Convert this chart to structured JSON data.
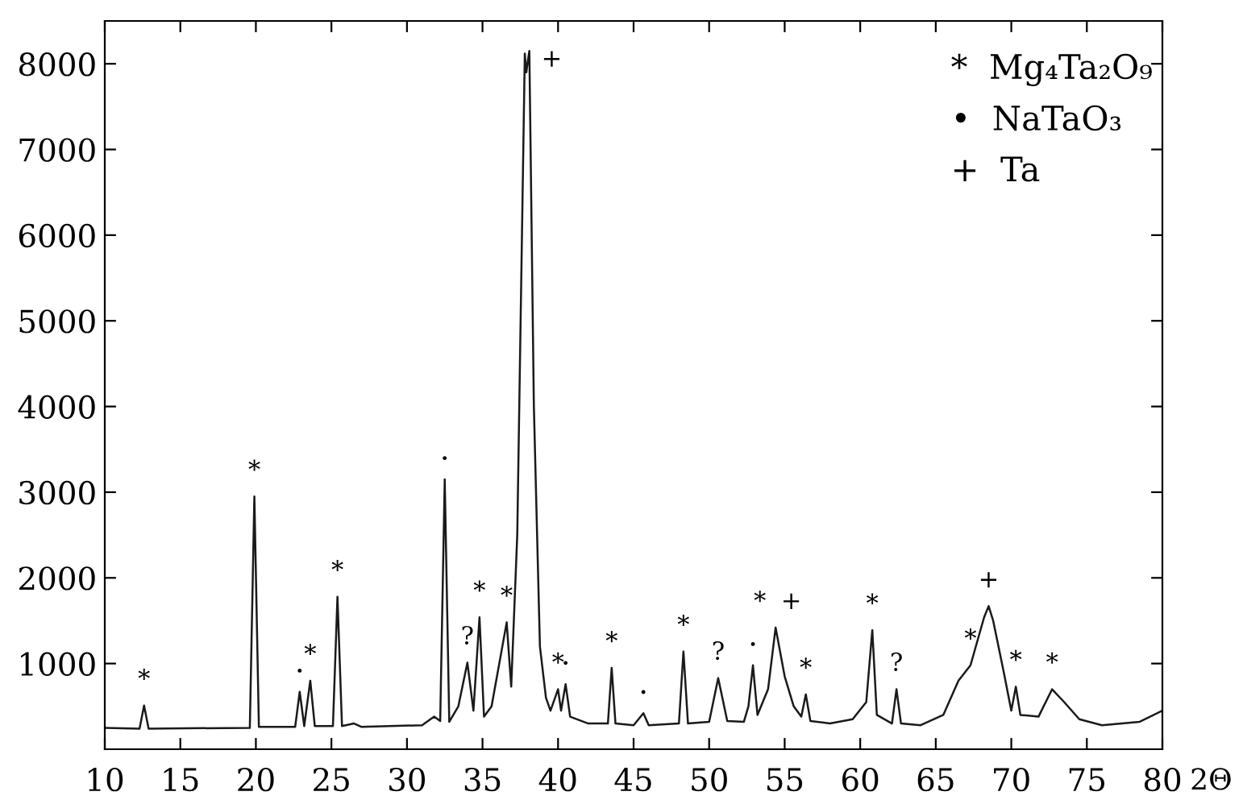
{
  "chart_data": {
    "type": "line",
    "xlabel": "2Θ",
    "x": [
      10,
      12.3,
      12.6,
      12.9,
      19.6,
      19.9,
      20.2,
      22.6,
      22.9,
      23.2,
      23.6,
      23.9,
      25.1,
      25.4,
      25.7,
      26.5,
      27,
      31,
      31.8,
      32.2,
      32.5,
      32.8,
      33.4,
      34.0,
      34.4,
      34.8,
      35.1,
      35.6,
      36.6,
      36.9,
      37.3,
      37.8,
      37.9,
      38.0,
      38.1,
      38.4,
      38.8,
      39.2,
      39.5,
      40.0,
      40.2,
      40.5,
      40.8,
      42,
      43.3,
      43.55,
      43.8,
      45,
      45.65,
      46,
      48.0,
      48.3,
      48.6,
      50.0,
      50.6,
      51.2,
      52.3,
      52.6,
      52.9,
      53.2,
      53.9,
      54.4,
      55.0,
      55.6,
      56.1,
      56.4,
      56.7,
      58,
      59.5,
      60.4,
      60.8,
      61.1,
      62.1,
      62.4,
      62.7,
      64,
      65.5,
      66.5,
      67.3,
      68.2,
      68.5,
      68.8,
      69.5,
      70.0,
      70.3,
      70.6,
      71.8,
      72.7,
      73.5,
      74.5,
      76,
      78.5,
      80
    ],
    "series": [
      {
        "color": "#1a1a1a",
        "values": [
          250,
          240,
          510,
          240,
          250,
          2950,
          260,
          260,
          670,
          270,
          800,
          270,
          270,
          1780,
          270,
          300,
          260,
          280,
          380,
          330,
          3150,
          320,
          500,
          1010,
          450,
          1540,
          380,
          500,
          1480,
          730,
          2500,
          8120,
          7900,
          8030,
          8150,
          4000,
          1200,
          600,
          450,
          700,
          450,
          760,
          380,
          300,
          300,
          950,
          300,
          280,
          420,
          280,
          300,
          1140,
          300,
          320,
          830,
          330,
          320,
          500,
          980,
          400,
          700,
          1420,
          850,
          500,
          380,
          640,
          330,
          300,
          350,
          550,
          1390,
          400,
          300,
          700,
          300,
          280,
          400,
          800,
          980,
          1540,
          1670,
          1500,
          900,
          450,
          730,
          400,
          380,
          700,
          550,
          350,
          280,
          320,
          450
        ]
      }
    ],
    "xlim": [
      10,
      80
    ],
    "xticks": [
      10,
      15,
      20,
      25,
      30,
      35,
      40,
      45,
      50,
      55,
      60,
      65,
      70,
      75,
      80
    ],
    "ylim": [
      0,
      8500
    ],
    "yticks": [
      1000,
      2000,
      3000,
      4000,
      5000,
      6000,
      7000,
      8000
    ],
    "grid": false,
    "legend": false,
    "marker": "none",
    "line_style": "solid",
    "annotations": [
      {
        "text": "*",
        "x": 12.6,
        "y": 510
      },
      {
        "text": "*",
        "x": 19.9,
        "y": 2950
      },
      {
        "text": "•",
        "x": 22.9,
        "y": 670
      },
      {
        "text": "*",
        "x": 23.6,
        "y": 800
      },
      {
        "text": "*",
        "x": 25.4,
        "y": 1780
      },
      {
        "text": "•",
        "x": 32.5,
        "y": 3150
      },
      {
        "text": "?",
        "x": 34.0,
        "y": 1010
      },
      {
        "text": "*",
        "x": 34.8,
        "y": 1540
      },
      {
        "text": "*",
        "x": 36.6,
        "y": 1480
      },
      {
        "text": "+",
        "x": 38.1,
        "y": 8150
      },
      {
        "text": "*",
        "x": 40.0,
        "y": 700
      },
      {
        "text": "•",
        "x": 40.5,
        "y": 760
      },
      {
        "text": "*",
        "x": 43.55,
        "y": 950
      },
      {
        "text": "•",
        "x": 45.65,
        "y": 420
      },
      {
        "text": "*",
        "x": 48.3,
        "y": 1140
      },
      {
        "text": "?",
        "x": 50.6,
        "y": 830
      },
      {
        "text": "•",
        "x": 52.9,
        "y": 980
      },
      {
        "text": "*",
        "x": 54.4,
        "y": 1420
      },
      {
        "text": "+",
        "x": 54.4,
        "y": 1420
      },
      {
        "text": "*",
        "x": 56.4,
        "y": 640
      },
      {
        "text": "*",
        "x": 60.8,
        "y": 1390
      },
      {
        "text": "?",
        "x": 62.4,
        "y": 700
      },
      {
        "text": "*",
        "x": 67.3,
        "y": 980
      },
      {
        "text": "+",
        "x": 68.5,
        "y": 1670
      },
      {
        "text": "*",
        "x": 70.3,
        "y": 730
      },
      {
        "text": "*",
        "x": 72.7,
        "y": 700
      },
      "*  Mg₄Ta₂O₉",
      "•  NaTaO₃",
      "+  Ta"
    ]
  }
}
